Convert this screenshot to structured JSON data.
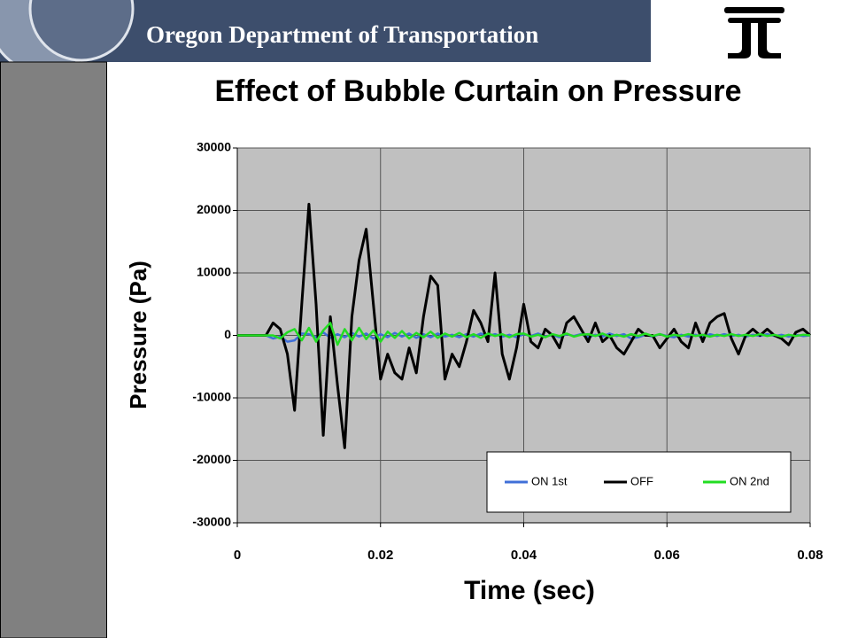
{
  "header": {
    "title": "Oregon Department of Transportation"
  },
  "chart_data": {
    "type": "line",
    "title": "Effect of Bubble Curtain on Pressure",
    "x_label": "Time (sec)",
    "y_label": "Pressure (Pa)",
    "xlim": [
      0,
      0.08
    ],
    "ylim": [
      -30000,
      30000
    ],
    "xticks": [
      0,
      0.02,
      0.04,
      0.06,
      0.08
    ],
    "yticks": [
      -30000,
      -20000,
      -10000,
      0,
      10000,
      20000,
      30000
    ],
    "grid": true,
    "legend": "lower right",
    "x": [
      0,
      0.001,
      0.002,
      0.003,
      0.004,
      0.005,
      0.006,
      0.007,
      0.008,
      0.009,
      0.01,
      0.011,
      0.012,
      0.013,
      0.014,
      0.015,
      0.016,
      0.017,
      0.018,
      0.019,
      0.02,
      0.021,
      0.022,
      0.023,
      0.024,
      0.025,
      0.026,
      0.027,
      0.028,
      0.029,
      0.03,
      0.031,
      0.032,
      0.033,
      0.034,
      0.035,
      0.036,
      0.037,
      0.038,
      0.039,
      0.04,
      0.041,
      0.042,
      0.043,
      0.044,
      0.045,
      0.046,
      0.047,
      0.048,
      0.049,
      0.05,
      0.051,
      0.052,
      0.053,
      0.054,
      0.055,
      0.056,
      0.057,
      0.058,
      0.059,
      0.06,
      0.061,
      0.062,
      0.063,
      0.064,
      0.065,
      0.066,
      0.067,
      0.068,
      0.069,
      0.07,
      0.071,
      0.072,
      0.073,
      0.074,
      0.075,
      0.076,
      0.077,
      0.078,
      0.079,
      0.08
    ],
    "series": [
      {
        "name": "ON 1st",
        "color": "#3f6fd8",
        "values": [
          0,
          0,
          0,
          0,
          0,
          -500,
          -200,
          -1000,
          -800,
          300,
          200,
          -300,
          500,
          -400,
          200,
          -300,
          400,
          -200,
          300,
          -500,
          200,
          -300,
          400,
          -200,
          300,
          -400,
          200,
          -300,
          300,
          -200,
          100,
          -300,
          200,
          -200,
          300,
          -100,
          200,
          -200,
          100,
          -300,
          200,
          -100,
          300,
          -200,
          100,
          -300,
          200,
          -100,
          200,
          -300,
          100,
          -200,
          300,
          -100,
          200,
          -500,
          -300,
          100,
          -200,
          200,
          -100,
          -300,
          100,
          -200,
          100,
          -300,
          200,
          -100,
          200,
          -100,
          100,
          -200,
          100,
          -100,
          200,
          -100,
          100,
          -200,
          100,
          -100,
          0
        ]
      },
      {
        "name": "OFF",
        "color": "#000000",
        "values": [
          0,
          0,
          0,
          0,
          0,
          2000,
          1000,
          -3000,
          -12000,
          5000,
          21000,
          5000,
          -16000,
          3000,
          -8000,
          -18000,
          3000,
          12000,
          17000,
          5000,
          -7000,
          -3000,
          -6000,
          -7000,
          -2000,
          -6000,
          3000,
          9500,
          8000,
          -7000,
          -3000,
          -5000,
          -1000,
          4000,
          2000,
          -1000,
          10000,
          -3000,
          -7000,
          -2000,
          5000,
          -1000,
          -2000,
          1000,
          0,
          -2000,
          2000,
          3000,
          1000,
          -1000,
          2000,
          -1000,
          0,
          -2000,
          -3000,
          -1000,
          1000,
          0,
          0,
          -2000,
          -500,
          1000,
          -1000,
          -2000,
          2000,
          -1000,
          2000,
          3000,
          3500,
          -500,
          -3000,
          0,
          1000,
          0,
          1000,
          0,
          -500,
          -1500,
          500,
          1000,
          0
        ]
      },
      {
        "name": "ON 2nd",
        "color": "#22dd22",
        "values": [
          0,
          0,
          0,
          0,
          0,
          0,
          -500,
          500,
          1000,
          -800,
          1200,
          -1000,
          800,
          2000,
          -1500,
          1000,
          -800,
          1200,
          -600,
          800,
          -1000,
          600,
          -400,
          700,
          -500,
          400,
          -300,
          600,
          -400,
          300,
          -200,
          400,
          -300,
          200,
          -400,
          300,
          -100,
          200,
          -300,
          200,
          300,
          -200,
          100,
          -300,
          200,
          -100,
          300,
          -200,
          100,
          200,
          -100,
          300,
          -200,
          100,
          -200,
          200,
          -100,
          300,
          -100,
          200,
          -200,
          100,
          -100,
          200,
          -100,
          100,
          -200,
          100,
          -100,
          200,
          -100,
          100,
          -100,
          200,
          -100,
          100,
          -200,
          100,
          -100,
          100,
          0
        ]
      }
    ]
  }
}
